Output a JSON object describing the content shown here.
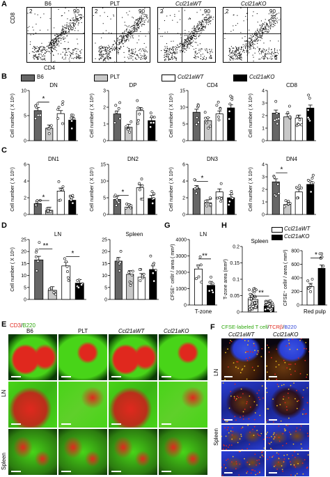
{
  "panels": {
    "A": "A",
    "B": "B",
    "C": "C",
    "D": "D",
    "E": "E",
    "F": "F",
    "G": "G",
    "H": "H"
  },
  "panelA": {
    "titles": [
      "B6",
      "PLT",
      "Ccl21aWT",
      "Ccl21aKO"
    ],
    "ylabel": "CD8",
    "xlabel": "CD4",
    "quadrants": [
      {
        "tl": "2",
        "tr": "90",
        "br": "5"
      },
      {
        "tl": "2",
        "tr": "90",
        "br": "5"
      },
      {
        "tl": "2",
        "tr": "90",
        "br": "4"
      },
      {
        "tl": "2",
        "tr": "90",
        "br": "6"
      }
    ]
  },
  "legend": {
    "items": [
      {
        "label": "B6",
        "color": "#666666"
      },
      {
        "label": "PLT",
        "color": "#c8c8c8"
      },
      {
        "label": "Ccl21aWT",
        "color": "#ffffff"
      },
      {
        "label": "Ccl21aKO",
        "color": "#000000"
      }
    ]
  },
  "colors": {
    "B6": "#666666",
    "PLT": "#c8c8c8",
    "WT": "#ffffff",
    "KO": "#000000"
  },
  "chart_data": [
    {
      "id": "B-DN",
      "type": "bar",
      "title": "DN",
      "ylabel": "Cell number ( X 10⁶)",
      "ylim": [
        0,
        10
      ],
      "ticks": [
        0,
        5,
        10
      ],
      "categories": [
        "B6",
        "PLT",
        "Ccl21aWT",
        "Ccl21aKO"
      ],
      "values": [
        6.0,
        2.5,
        5.4,
        4.1
      ],
      "sig": [
        {
          "from": 0,
          "to": 1,
          "label": "*"
        }
      ]
    },
    {
      "id": "B-DP",
      "type": "bar",
      "title": "DP",
      "ylabel": "Cell number ( X 10⁸)",
      "ylim": [
        0,
        3
      ],
      "ticks": [
        0,
        1,
        2,
        3
      ],
      "categories": [
        "B6",
        "PLT",
        "Ccl21aWT",
        "Ccl21aKO"
      ],
      "values": [
        1.6,
        0.8,
        1.8,
        1.2
      ],
      "sig": []
    },
    {
      "id": "B-CD4",
      "type": "bar",
      "title": "CD4",
      "ylabel": "Cell number ( X 10⁶)",
      "ylim": [
        0,
        15
      ],
      "ticks": [
        0,
        5,
        10,
        15
      ],
      "categories": [
        "B6",
        "PLT",
        "Ccl21aWT",
        "Ccl21aKO"
      ],
      "values": [
        8.5,
        6.0,
        8.0,
        9.8
      ],
      "sig": []
    },
    {
      "id": "B-CD8",
      "type": "bar",
      "title": "CD8",
      "ylabel": "Cell number ( X 10⁶)",
      "ylim": [
        0,
        4
      ],
      "ticks": [
        0,
        1,
        2,
        3,
        4
      ],
      "categories": [
        "B6",
        "PLT",
        "Ccl21aWT",
        "Ccl21aKO"
      ],
      "values": [
        2.2,
        1.9,
        1.8,
        2.6
      ],
      "sig": []
    },
    {
      "id": "C-DN1",
      "type": "bar",
      "title": "DN1",
      "ylabel": "Cell number ( X 10⁵)",
      "ylim": [
        0,
        6
      ],
      "ticks": [
        0,
        2,
        4,
        6
      ],
      "categories": [
        "B6",
        "PLT",
        "Ccl21aWT",
        "Ccl21aKO"
      ],
      "values": [
        1.3,
        0.5,
        2.8,
        1.7
      ],
      "sig": [
        {
          "from": 0,
          "to": 1,
          "label": "*"
        }
      ]
    },
    {
      "id": "C-DN2",
      "type": "bar",
      "title": "DN2",
      "ylabel": "Cell number ( X 10⁵)",
      "ylim": [
        0,
        15
      ],
      "ticks": [
        0,
        5,
        10,
        15
      ],
      "categories": [
        "B6",
        "PLT",
        "Ccl21aWT",
        "Ccl21aKO"
      ],
      "values": [
        4.5,
        2.2,
        8.0,
        4.8
      ],
      "sig": [
        {
          "from": 0,
          "to": 1,
          "label": "*"
        }
      ]
    },
    {
      "id": "C-DN3",
      "type": "bar",
      "title": "DN3",
      "ylabel": "Cell number ( X 10⁶)",
      "ylim": [
        0,
        6
      ],
      "ticks": [
        0,
        2,
        4,
        6
      ],
      "categories": [
        "B6",
        "PLT",
        "Ccl21aWT",
        "Ccl21aKO"
      ],
      "values": [
        3.1,
        1.4,
        2.7,
        2.0
      ],
      "sig": [
        {
          "from": 0,
          "to": 1,
          "label": "*"
        }
      ]
    },
    {
      "id": "C-DN4",
      "type": "bar",
      "title": "DN4",
      "ylabel": "Cell number ( X 10⁶)",
      "ylim": [
        0,
        4
      ],
      "ticks": [
        0,
        1,
        2,
        3,
        4
      ],
      "categories": [
        "B6",
        "PLT",
        "Ccl21aWT",
        "Ccl21aKO"
      ],
      "values": [
        2.6,
        0.8,
        1.8,
        2.4
      ],
      "sig": [
        {
          "from": 0,
          "to": 1,
          "label": "*"
        }
      ]
    },
    {
      "id": "D-LN",
      "type": "bar",
      "title": "LN",
      "ylabel": "Cell number ( X 10⁶)",
      "ylim": [
        0,
        25
      ],
      "ticks": [
        0,
        5,
        10,
        15,
        20,
        25
      ],
      "categories": [
        "B6",
        "PLT",
        "Ccl21aWT",
        "Ccl21aKO"
      ],
      "values": [
        16.5,
        3.8,
        14.0,
        6.8
      ],
      "sig": [
        {
          "from": 0,
          "to": 1,
          "label": "**"
        },
        {
          "from": 2,
          "to": 3,
          "label": "*"
        }
      ]
    },
    {
      "id": "D-Spleen",
      "type": "bar",
      "title": "Spleen",
      "ylabel": "",
      "ylim": [
        0,
        25
      ],
      "ticks": [
        0,
        5,
        10,
        15,
        20,
        25
      ],
      "categories": [
        "B6",
        "PLT",
        "Ccl21aWT",
        "Ccl21aKO"
      ],
      "values": [
        16.0,
        10.5,
        9.3,
        12.5
      ],
      "sig": []
    },
    {
      "id": "G",
      "type": "bar",
      "title": "LN",
      "ylabel": "CFSE⁺ cell# / area ( mm²)",
      "xlabel": "T-zone",
      "ylim": [
        0,
        4000
      ],
      "ticks": [
        0,
        1000,
        2000,
        3000,
        4000
      ],
      "categories": [
        "Ccl21aWT",
        "Ccl21aKO"
      ],
      "values": [
        2200,
        1200
      ],
      "sig": [
        {
          "from": 0,
          "to": 1,
          "label": "**"
        }
      ]
    },
    {
      "id": "H-Spleen",
      "type": "bar",
      "title": "Spleen",
      "ylabel": "T-zone area (mm²)",
      "ylim": [
        0,
        0.2
      ],
      "ticks": [
        0,
        0.05,
        0.1,
        0.15,
        0.2
      ],
      "categories": [
        "Ccl21aWT",
        "Ccl21aKO"
      ],
      "values": [
        0.038,
        0.018
      ],
      "sig": [
        {
          "from": 0,
          "to": 1,
          "label": "**"
        }
      ]
    },
    {
      "id": "H-Red",
      "type": "bar",
      "title": "",
      "ylabel": "CFSE⁺ cell# / area ( mm²)",
      "xlabel": "Red pulp",
      "ylim": [
        0,
        800
      ],
      "ticks": [
        0,
        200,
        400,
        600,
        800
      ],
      "categories": [
        "Ccl21aWT",
        "Ccl21aKO"
      ],
      "values": [
        270,
        540
      ],
      "sig": [
        {
          "from": 0,
          "to": 1,
          "label": "*"
        }
      ]
    }
  ],
  "panelG": {
    "title": "LN",
    "xlabel": "T-zone",
    "ylabel": "CFSE⁺ cell# / area ( mm²)"
  },
  "panelH": {
    "legend": [
      "Ccl21aWT",
      "Ccl21aKO"
    ],
    "spleen_title": "Spleen",
    "red_xlabel": "Red pulp"
  },
  "panelE": {
    "title_cd3": "CD3",
    "title_sep": "/",
    "title_b220": "B220",
    "cols": [
      "B6",
      "PLT",
      "Ccl21aWT",
      "Ccl21aKO"
    ],
    "rows": [
      "LN",
      "Spleen"
    ],
    "cd3_color": "#e0281e",
    "b220_color": "#48d418"
  },
  "panelF": {
    "title_cfse": "CFSE-labeled T cell",
    "title_tcr": "TCRβ",
    "title_b220": "B220",
    "cols": [
      "Ccl21aWT",
      "Ccl21aKO"
    ],
    "rows": [
      "LN",
      "Spleen"
    ]
  }
}
